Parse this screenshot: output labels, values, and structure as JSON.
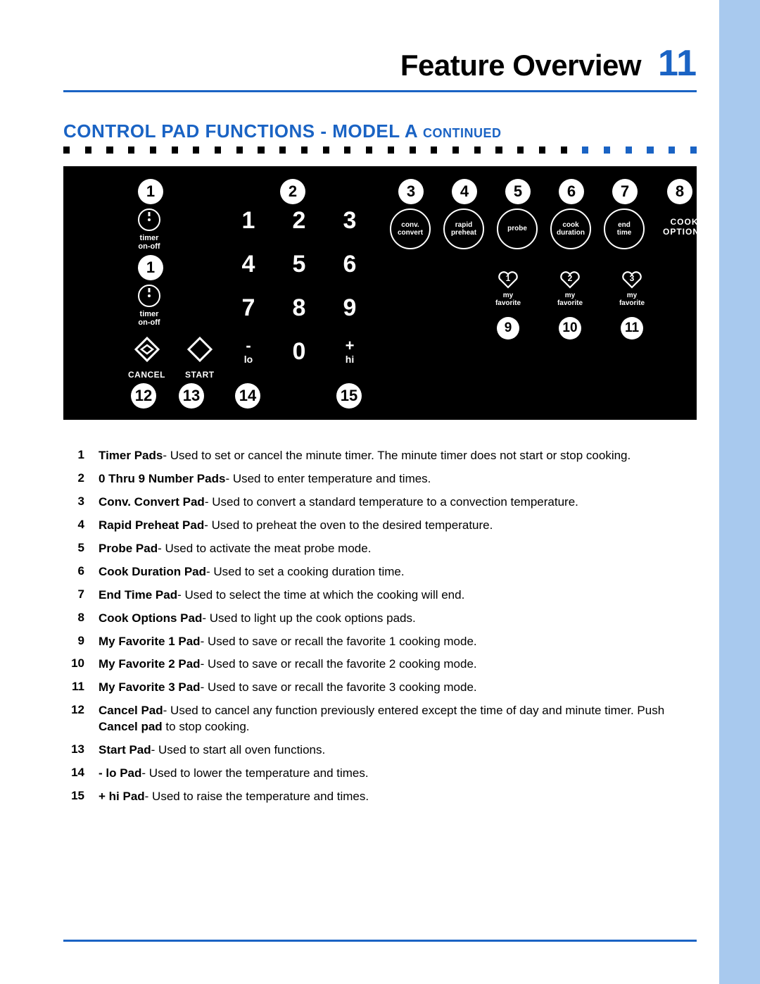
{
  "colors": {
    "accent": "#1a63c4",
    "side_strip": "#a8c9ee",
    "panel_bg": "#000000",
    "panel_fg": "#ffffff",
    "dot_black": "#000000"
  },
  "header": {
    "title": "Feature Overview",
    "page_number": "11"
  },
  "subtitle": {
    "main": "CONTROL PAD FUNCTIONS - MODEL A ",
    "continued": "CONTINUED"
  },
  "dot_row": {
    "total": 30,
    "blue_start_index": 24
  },
  "panel": {
    "callouts": {
      "c1": "1",
      "c1s": "1",
      "c2": "2",
      "c3": "3",
      "c4": "4",
      "c5": "5",
      "c6": "6",
      "c7": "7",
      "c8": "8",
      "c9": "9",
      "c10": "10",
      "c11": "11",
      "c12": "12",
      "c13": "13",
      "c14": "14",
      "c15": "15"
    },
    "timer_label": "timer\non-off",
    "keypad": [
      "1",
      "2",
      "3",
      "4",
      "5",
      "6",
      "7",
      "8",
      "9"
    ],
    "kp_bottom": {
      "lo_sym": "-",
      "lo_lab": "lo",
      "zero": "0",
      "hi_sym": "+",
      "hi_lab": "hi"
    },
    "cancel_label": "CANCEL",
    "start_label": "START",
    "func_buttons": {
      "conv": "conv.\nconvert",
      "rapid": "rapid\npreheat",
      "probe": "probe",
      "cook_dur": "cook\nduration",
      "end_time": "end\ntime"
    },
    "cook_options": "COOK\nOPTIONS",
    "favorites": {
      "h1": "1",
      "h2": "2",
      "h3": "3",
      "label": "my\nfavorite"
    }
  },
  "legend": [
    {
      "n": "1",
      "bold": "Timer Pads",
      "rest": "- Used to set or cancel the minute timer. The minute timer does not start or stop cooking."
    },
    {
      "n": "2",
      "bold": "0 Thru 9 Number Pads",
      "rest": "- Used to enter temperature and times."
    },
    {
      "n": "3",
      "bold": "Conv. Convert Pad",
      "rest": "- Used to convert a standard temperature to a convection temperature."
    },
    {
      "n": "4",
      "bold": "Rapid Preheat Pad",
      "rest": "- Used to preheat the oven to the desired temperature."
    },
    {
      "n": "5",
      "bold": "Probe Pad",
      "rest": "- Used to activate the meat probe mode."
    },
    {
      "n": "6",
      "bold": "Cook Duration Pad",
      "rest": "- Used to set a cooking duration time."
    },
    {
      "n": "7",
      "bold": "End Time Pad",
      "rest": "- Used to select the time at which the cooking will end."
    },
    {
      "n": "8",
      "bold": "Cook Options Pad",
      "rest": "- Used to light up the cook options pads."
    },
    {
      "n": "9",
      "bold": "My Favorite 1 Pad",
      "rest": "- Used to save or recall the favorite 1 cooking mode."
    },
    {
      "n": "10",
      "bold": "My Favorite 2 Pad",
      "rest": "- Used to save or recall the favorite 2 cooking mode."
    },
    {
      "n": "11",
      "bold": "My Favorite 3 Pad",
      "rest": "- Used to save or recall the favorite 3 cooking mode."
    },
    {
      "n": "12",
      "bold": "Cancel Pad",
      "rest": "- Used to cancel any function previously entered except the time of day and minute timer. Push ",
      "bold2": "Cancel pad",
      "rest2": " to stop cooking."
    },
    {
      "n": "13",
      "bold": "Start Pad",
      "rest": "- Used to start all oven functions."
    },
    {
      "n": "14",
      "bold": "- lo Pad",
      "rest": "- Used to lower the temperature and times."
    },
    {
      "n": "15",
      "bold": "+ hi Pad",
      "rest": "- Used to raise the temperature and times."
    }
  ]
}
